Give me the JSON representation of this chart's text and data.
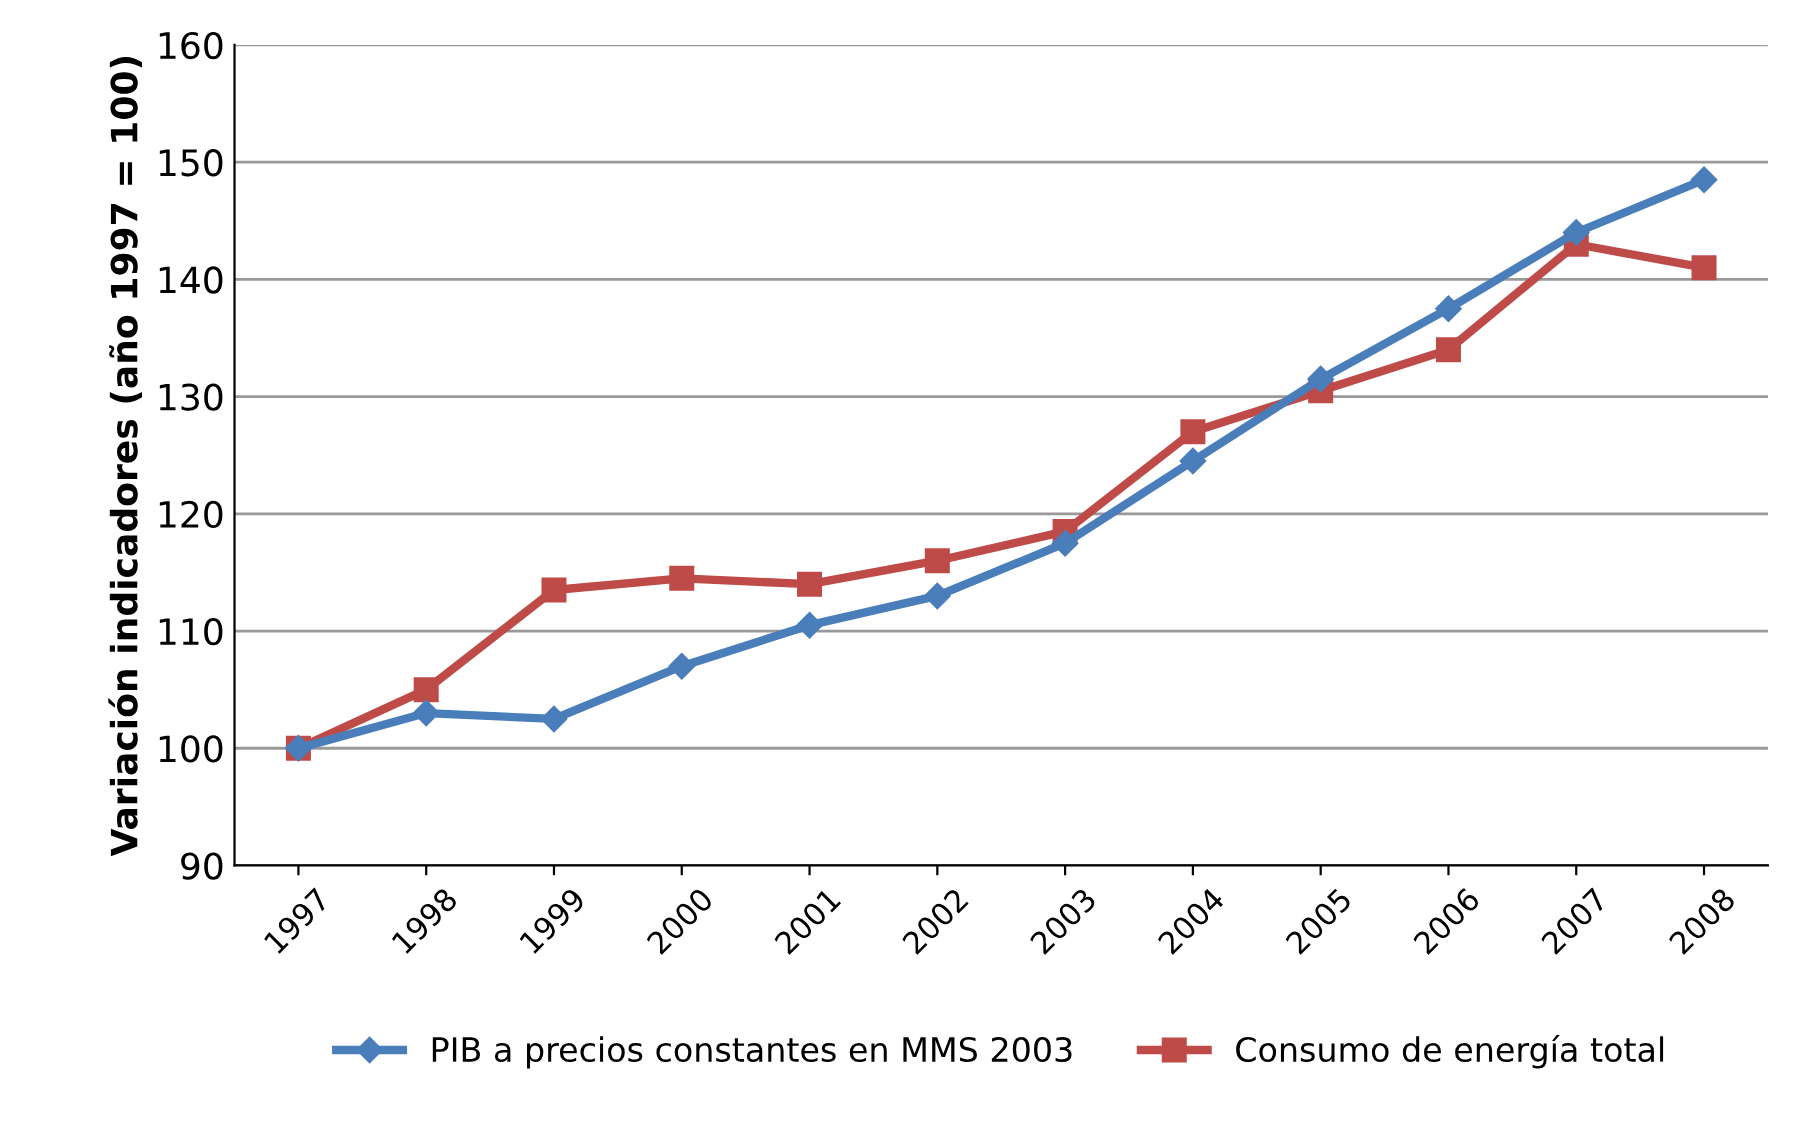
{
  "chart_data": {
    "type": "line",
    "ylabel": "Variación indicadores (año 1997 = 100)",
    "categories": [
      "1997",
      "1998",
      "1999",
      "2000",
      "2001",
      "2002",
      "2003",
      "2004",
      "2005",
      "2006",
      "2007",
      "2008"
    ],
    "series": [
      {
        "name": "PIB a precios constantes en MMS 2003",
        "color": "#4a7ebb",
        "marker": "diamond",
        "values": [
          100,
          103,
          102.5,
          107,
          110.5,
          113,
          117.5,
          124.5,
          131.5,
          137.5,
          144,
          148.5
        ]
      },
      {
        "name": "Consumo de energía total",
        "color": "#be4b48",
        "marker": "square",
        "values": [
          100,
          105,
          113.5,
          114.5,
          114,
          116,
          118.5,
          127,
          130.5,
          134,
          143,
          141
        ]
      }
    ],
    "ylim": [
      90,
      160
    ],
    "yticks": [
      90,
      100,
      110,
      120,
      130,
      140,
      150,
      160
    ],
    "grid": "y",
    "legend": "bottom",
    "line_style": "solid"
  }
}
